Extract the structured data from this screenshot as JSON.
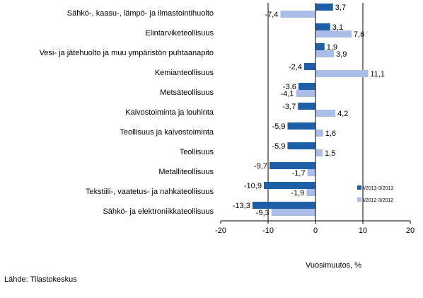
{
  "chart_data": {
    "type": "bar",
    "orientation": "horizontal",
    "categories": [
      "Sähkö-, kaasu-, lämpö- ja ilmastointihuolto",
      "Elintarviketeollisuus",
      "Vesi- ja jätehuolto ja muu ympäristön puhtaanapito",
      "Kemianteollisuus",
      "Metsäteollisuus",
      "Kaivostoiminta ja louhinta",
      "Teollisuus ja kaivostoiminta",
      "Teollisuus",
      "Metalliteollisuus",
      "Tekstiili-, vaatetus- ja nahkateollisuus",
      "Sähkö- ja elektroniikkateollisuus"
    ],
    "series": [
      {
        "name": "I/2013-3/2013",
        "color": "#1f5fa8",
        "values": [
          3.7,
          3.1,
          1.9,
          -2.4,
          -3.6,
          -3.7,
          -5.9,
          -5.9,
          -9.7,
          -10.9,
          -13.3
        ],
        "labels": [
          "3,7",
          "3,1",
          "1,9",
          "-2,4",
          "-3,6",
          "-3,7",
          "-5,9",
          "-5,9",
          "-9,7",
          "-10,9",
          "-13,3"
        ]
      },
      {
        "name": "I/2012-3/2012",
        "color": "#a9bde8",
        "values": [
          -7.4,
          7.6,
          3.9,
          11.1,
          -4.1,
          4.2,
          1.6,
          1.5,
          -1.7,
          -1.9,
          -9.3
        ],
        "labels": [
          "-7,4",
          "7,6",
          "3,9",
          "11,1",
          "-4,1",
          "4,2",
          "1,6",
          "1,5",
          "-1,7",
          "-1,9",
          "-9,3"
        ]
      }
    ],
    "xlim": [
      -20,
      20
    ],
    "xticks": [
      "-20",
      "-10",
      "0",
      "10",
      "20"
    ],
    "xlabel": "Vuosimuutos, %",
    "gridlines_at": [
      -10,
      10
    ],
    "legend_position": "right"
  },
  "source": "Lähde: Tilastokeskus"
}
